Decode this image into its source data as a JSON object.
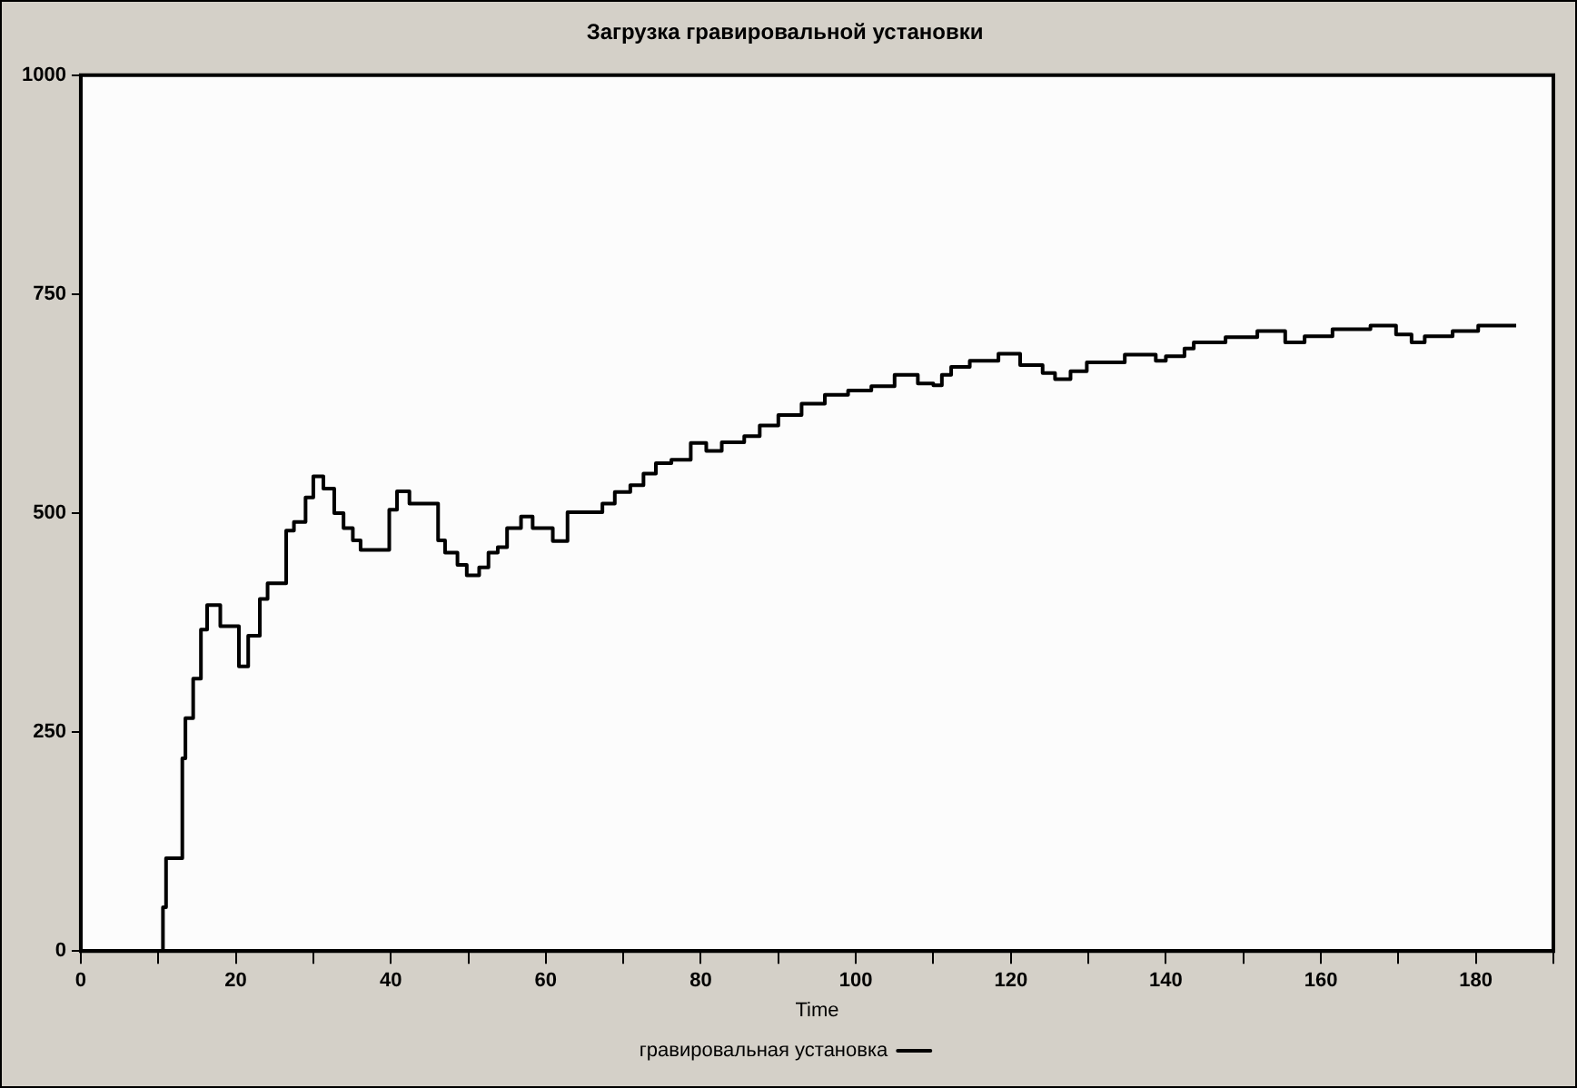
{
  "chart_data": {
    "type": "step",
    "title": "Загрузка гравировальной установки",
    "xlabel": "Time",
    "xlim": [
      0,
      190
    ],
    "ylim": [
      0,
      1000
    ],
    "xticks": [
      0,
      {
        "value": 10,
        "label": null
      },
      20,
      {
        "value": 30,
        "label": null
      },
      40,
      {
        "value": 50,
        "label": null
      },
      60,
      {
        "value": 70,
        "label": null
      },
      80,
      {
        "value": 90,
        "label": null
      },
      100,
      {
        "value": 110,
        "label": null
      },
      120,
      {
        "value": 130,
        "label": null
      },
      140,
      {
        "value": 150,
        "label": null
      },
      160,
      {
        "value": 170,
        "label": null
      },
      180,
      {
        "value": 190,
        "label": null
      }
    ],
    "yticks": [
      0,
      250,
      500,
      750,
      1000
    ],
    "grid": false,
    "legend": "bottom",
    "marker": "none",
    "line_style": "solid",
    "series": [
      {
        "name": "гравировальная установка",
        "color": "#000000",
        "x": [
          0,
          10.6,
          11,
          13.1,
          13.5,
          14.5,
          15.5,
          16.3,
          18,
          20.4,
          21.6,
          23.1,
          24.1,
          26.5,
          27.5,
          29,
          30,
          31.3,
          32.7,
          33.9,
          35.1,
          36.1,
          39.8,
          40.8,
          42.4,
          46.1,
          47,
          48.6,
          49.8,
          51.4,
          52.6,
          53.8,
          55,
          56.8,
          58.3,
          60.9,
          62.8,
          67.3,
          68.9,
          70.9,
          72.6,
          74.2,
          76.2,
          78.7,
          80.7,
          82.7,
          85.6,
          87.6,
          90,
          93,
          96,
          99,
          102,
          105,
          108,
          110,
          111.1,
          112.3,
          114.7,
          118.4,
          121.2,
          124.1,
          125.7,
          127.7,
          129.8,
          134.7,
          138.7,
          140,
          142.4,
          143.6,
          147.7,
          151.8,
          155.4,
          157.9,
          161.5,
          166.4,
          169.7,
          171.7,
          173.4,
          177,
          180.3,
          185.2
        ],
        "values": [
          0,
          50,
          106,
          220,
          266,
          311,
          367,
          395,
          371,
          325,
          360,
          402,
          420,
          480,
          490,
          518,
          542,
          528,
          500,
          483,
          469,
          458,
          504,
          525,
          511,
          469,
          455,
          441,
          429,
          438,
          455,
          461,
          483,
          496,
          483,
          468,
          501,
          511,
          524,
          532,
          545,
          557,
          561,
          580,
          571,
          581,
          588,
          600,
          612,
          625,
          635,
          640,
          645,
          658,
          648,
          646,
          658,
          667,
          674,
          682,
          669,
          660,
          653,
          662,
          672,
          681,
          674,
          679,
          688,
          695,
          701,
          708,
          695,
          702,
          710,
          714,
          704,
          695,
          702,
          708,
          714,
          714
        ]
      }
    ]
  }
}
